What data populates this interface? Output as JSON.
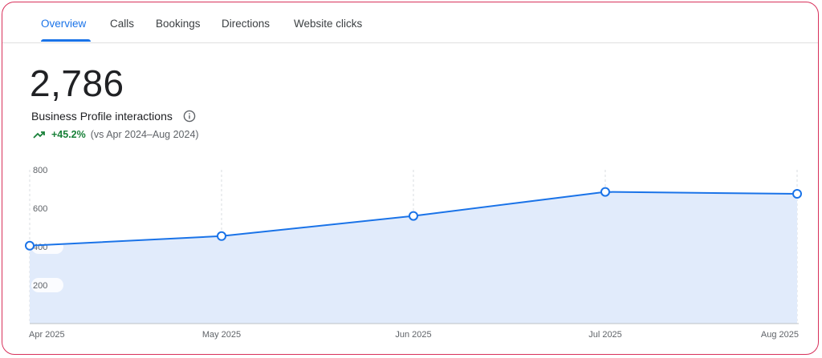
{
  "tabs": [
    {
      "label": "Overview",
      "active": true
    },
    {
      "label": "Calls",
      "active": false
    },
    {
      "label": "Bookings",
      "active": false
    },
    {
      "label": "Directions",
      "active": false
    },
    {
      "label": "Website clicks",
      "active": false
    }
  ],
  "metric": {
    "value": "2,786",
    "label": "Business Profile interactions",
    "info_icon": "info-icon",
    "trend_icon": "trending-up-icon",
    "change": "+45.2%",
    "comparison": "(vs Apr 2024–Aug 2024)"
  },
  "colors": {
    "accent": "#1a73e8",
    "positive": "#188038",
    "area_fill": "#e1ebfb",
    "border": "#d8315b"
  },
  "chart_data": {
    "type": "area",
    "categories": [
      "Apr 2025",
      "May 2025",
      "Jun 2025",
      "Jul 2025",
      "Aug 2025"
    ],
    "values": [
      405,
      455,
      560,
      685,
      675
    ],
    "ylim": [
      0,
      800
    ],
    "yticks": [
      200,
      400,
      600,
      800
    ],
    "grid": "vertical dashed",
    "markers": "hollow circles"
  }
}
